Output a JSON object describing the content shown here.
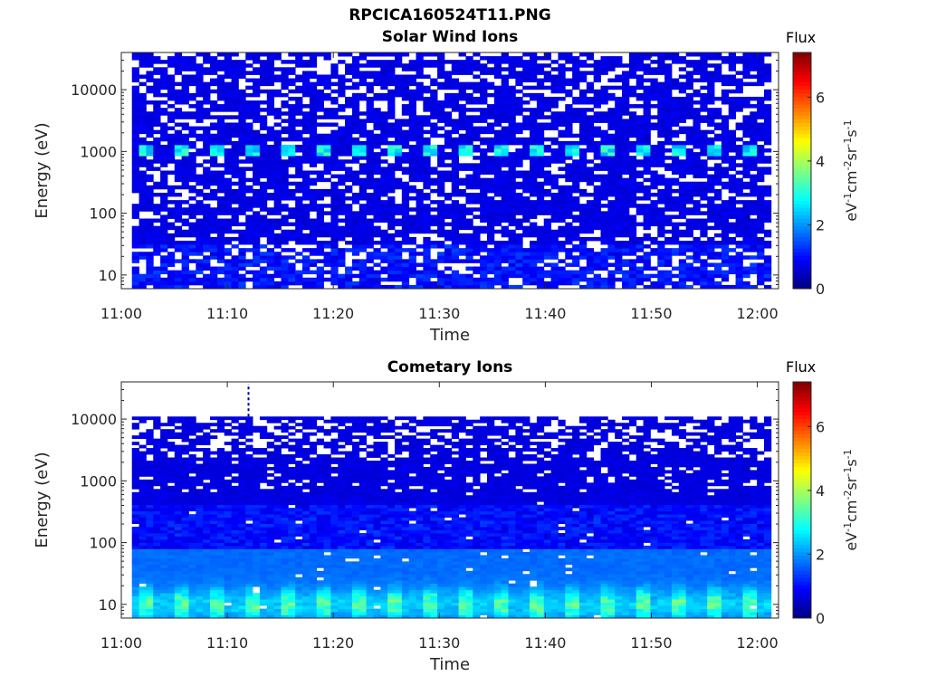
{
  "figure": {
    "title": "RPCICA160524T11.PNG"
  },
  "chart_data": [
    {
      "type": "heatmap",
      "title": "Solar Wind Ions",
      "xlabel": "Time",
      "ylabel": "Energy (eV)",
      "x_tick_labels": [
        "11:00",
        "11:10",
        "11:20",
        "11:30",
        "11:40",
        "11:50",
        "12:00"
      ],
      "x_range_minutes": [
        0,
        62
      ],
      "y_scale": "log",
      "y_tick_labels": [
        "10",
        "100",
        "1000",
        "10000"
      ],
      "y_ticks": [
        10,
        100,
        1000,
        10000
      ],
      "ylim": [
        6,
        40000
      ],
      "colorbar": {
        "label": "Flux",
        "unit": "eV-1cm-2sr-1s-1",
        "ticks": [
          "0",
          "2",
          "4",
          "6"
        ],
        "range": [
          0,
          7.4
        ],
        "colormap": "jet"
      },
      "features": {
        "periodic_peak_energy_eV": 1000,
        "peak_value": 3.0,
        "background_value": 0.6
      }
    },
    {
      "type": "heatmap",
      "title": "Cometary Ions",
      "xlabel": "Time",
      "ylabel": "Energy (eV)",
      "x_tick_labels": [
        "11:00",
        "11:10",
        "11:20",
        "11:30",
        "11:40",
        "11:50",
        "12:00"
      ],
      "x_range_minutes": [
        0,
        62
      ],
      "y_scale": "log",
      "y_tick_labels": [
        "10",
        "100",
        "1000",
        "10000"
      ],
      "y_ticks": [
        10,
        100,
        1000,
        10000
      ],
      "ylim": [
        6,
        40000
      ],
      "data_upper_energy_eV": 11000,
      "colorbar": {
        "label": "Flux",
        "unit": "eV-1cm-2sr-1s-1",
        "ticks": [
          "0",
          "2",
          "4",
          "6"
        ],
        "range": [
          0,
          7.4
        ],
        "colormap": "jet"
      },
      "features": {
        "low_energy_peak_eV": 10,
        "peak_value": 5.0,
        "background_value": 0.6
      }
    }
  ]
}
